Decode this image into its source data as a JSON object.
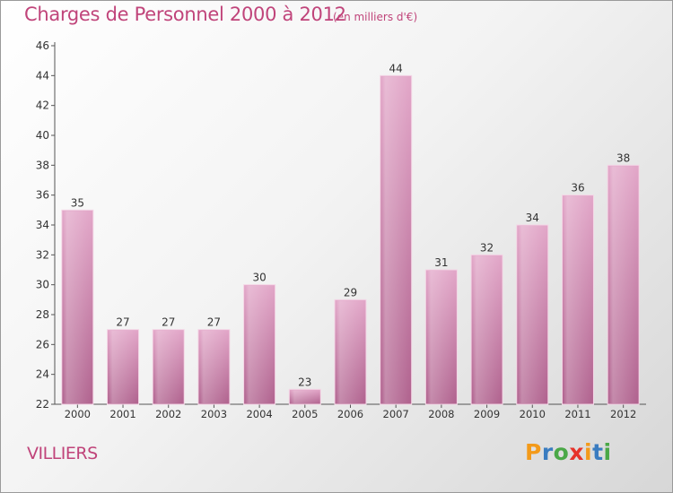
{
  "header": {
    "title": "Charges de Personnel 2000 à 2012",
    "subtitle": "(en milliers d'€)"
  },
  "footer": {
    "commune": "VILLIERS",
    "logo_text": "Proxiti",
    "logo_colors": [
      "#f39a1a",
      "#3a7cc0",
      "#4aa847",
      "#e6332a",
      "#f39a1a",
      "#3a7cc0",
      "#4aa847"
    ]
  },
  "colors": {
    "bar_top": "#e2a6c8",
    "bar_bottom": "#b0628e",
    "text_accent": "#c0447a",
    "axis": "#555555"
  },
  "chart_data": {
    "type": "bar",
    "title": "Charges de Personnel 2000 à 2012",
    "subtitle": "(en milliers d'€)",
    "categories": [
      "2000",
      "2001",
      "2002",
      "2003",
      "2004",
      "2005",
      "2006",
      "2007",
      "2008",
      "2009",
      "2010",
      "2011",
      "2012"
    ],
    "values": [
      35,
      27,
      27,
      27,
      30,
      23,
      29,
      44,
      31,
      32,
      34,
      36,
      38
    ],
    "ylim": [
      22,
      46
    ],
    "yticks": [
      22,
      24,
      26,
      28,
      30,
      32,
      34,
      36,
      38,
      40,
      42,
      44,
      46
    ],
    "xlabel": "",
    "ylabel": "",
    "grid": false,
    "data_labels": true
  }
}
